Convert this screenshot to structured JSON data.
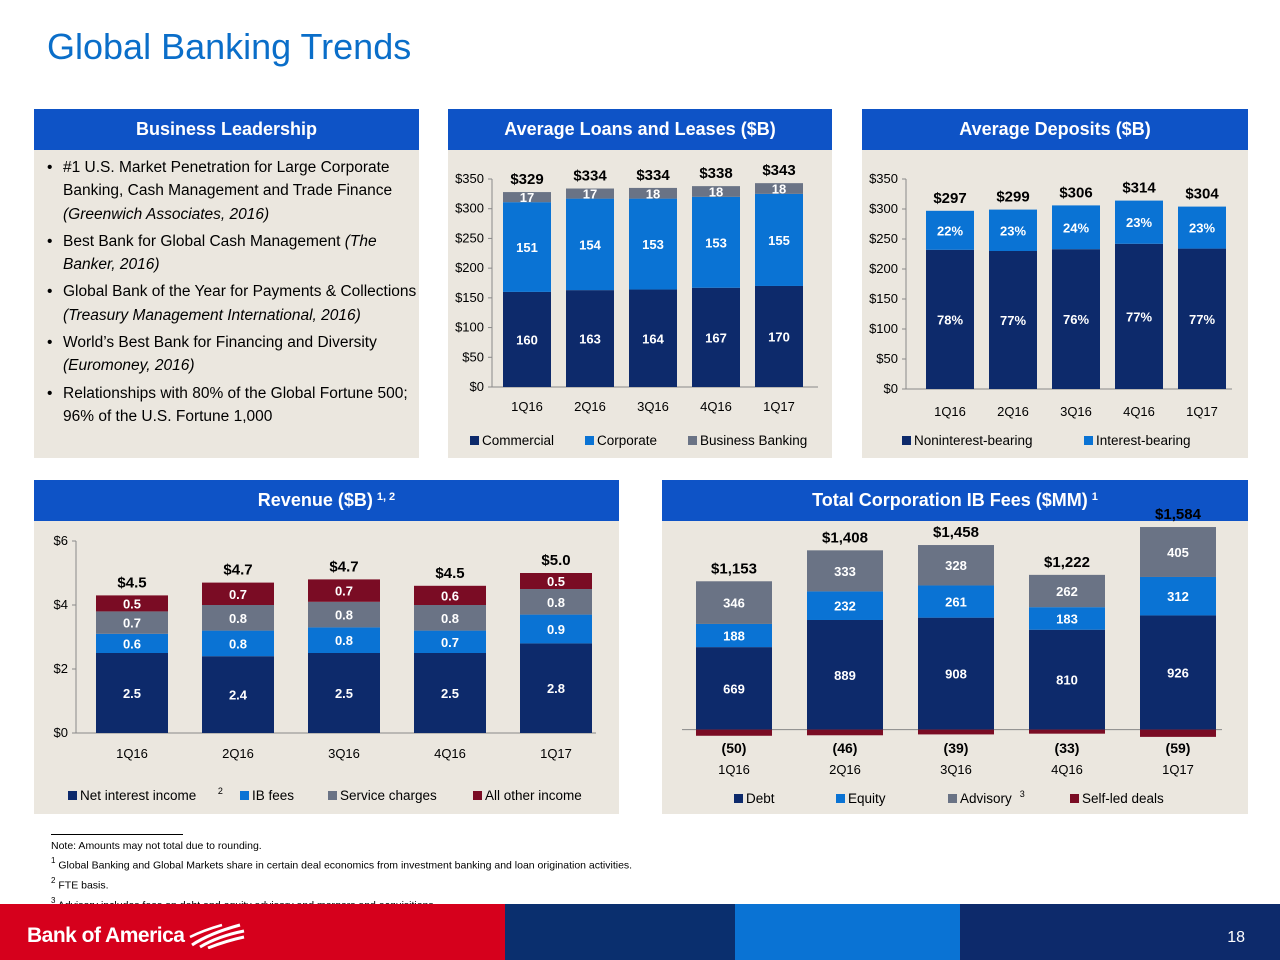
{
  "title": "Global Banking Trends",
  "leadership": {
    "header": "Business Leadership",
    "bullets": [
      {
        "text": "#1 U.S. Market Penetration for Large Corporate Banking, Cash Management and Trade Finance ",
        "italic": "(Greenwich Associates, 2016)"
      },
      {
        "text": "Best Bank for Global Cash Management ",
        "italic": "(The Banker, 2016)"
      },
      {
        "text": "Global Bank of the Year for Payments & Collections ",
        "italic": "(Treasury Management International, 2016)"
      },
      {
        "text": "World’s Best Bank for Financing and Diversity ",
        "italic": "(Euromoney, 2016)"
      },
      {
        "text": "Relationships with 80% of the Global Fortune 500; 96% of the U.S. Fortune 1,000",
        "italic": ""
      }
    ]
  },
  "chart_data": [
    {
      "id": "loans",
      "type": "bar",
      "title": "Average Loans and Leases ($B)",
      "categories": [
        "1Q16",
        "2Q16",
        "3Q16",
        "4Q16",
        "1Q17"
      ],
      "yticks": [
        "$0",
        "$50",
        "$100",
        "$150",
        "$200",
        "$250",
        "$300",
        "$350"
      ],
      "ylim": [
        0,
        350
      ],
      "totals": [
        "$329",
        "$334",
        "$334",
        "$338",
        "$343"
      ],
      "series": [
        {
          "name": "Commercial",
          "values": [
            160,
            163,
            164,
            167,
            170
          ],
          "labels": [
            "160",
            "163",
            "164",
            "167",
            "170"
          ],
          "color": "#0d2a6b"
        },
        {
          "name": "Corporate",
          "values": [
            151,
            154,
            153,
            153,
            155
          ],
          "labels": [
            "151",
            "154",
            "153",
            "153",
            "155"
          ],
          "color": "#0a73d4"
        },
        {
          "name": "Business Banking",
          "values": [
            17,
            17,
            18,
            18,
            18
          ],
          "labels": [
            "17",
            "17",
            "18",
            "18",
            "18"
          ],
          "color": "#6a7385"
        }
      ]
    },
    {
      "id": "deposits",
      "type": "bar",
      "title": "Average Deposits ($B)",
      "categories": [
        "1Q16",
        "2Q16",
        "3Q16",
        "4Q16",
        "1Q17"
      ],
      "yticks": [
        "$0",
        "$50",
        "$100",
        "$150",
        "$200",
        "$250",
        "$300",
        "$350"
      ],
      "ylim": [
        0,
        350
      ],
      "totals": [
        "$297",
        "$299",
        "$306",
        "$314",
        "$304"
      ],
      "series": [
        {
          "name": "Noninterest-bearing",
          "values": [
            232,
            230,
            233,
            242,
            234
          ],
          "labels": [
            "78%",
            "77%",
            "76%",
            "77%",
            "77%"
          ],
          "color": "#0d2a6b"
        },
        {
          "name": "Interest-bearing",
          "values": [
            65,
            69,
            73,
            72,
            70
          ],
          "labels": [
            "22%",
            "23%",
            "24%",
            "23%",
            "23%"
          ],
          "color": "#0a73d4"
        }
      ]
    },
    {
      "id": "revenue",
      "type": "bar",
      "title": "Revenue ($B)",
      "title_sup": "1, 2",
      "categories": [
        "1Q16",
        "2Q16",
        "3Q16",
        "4Q16",
        "1Q17"
      ],
      "yticks": [
        "$0",
        "$2",
        "$4",
        "$6"
      ],
      "ylim": [
        0,
        6
      ],
      "totals": [
        "$4.5",
        "$4.7",
        "$4.7",
        "$4.5",
        "$5.0"
      ],
      "series": [
        {
          "name": "Net interest income",
          "name_sup": "2",
          "values": [
            2.5,
            2.4,
            2.5,
            2.5,
            2.8
          ],
          "labels": [
            "2.5",
            "2.4",
            "2.5",
            "2.5",
            "2.8"
          ],
          "color": "#0d2a6b"
        },
        {
          "name": "IB fees",
          "values": [
            0.6,
            0.8,
            0.8,
            0.7,
            0.9
          ],
          "labels": [
            "0.6",
            "0.8",
            "0.8",
            "0.7",
            "0.9"
          ],
          "color": "#0a73d4"
        },
        {
          "name": "Service charges",
          "values": [
            0.7,
            0.8,
            0.8,
            0.8,
            0.8
          ],
          "labels": [
            "0.7",
            "0.8",
            "0.8",
            "0.8",
            "0.8"
          ],
          "color": "#6a7385"
        },
        {
          "name": "All other income",
          "values": [
            0.5,
            0.7,
            0.7,
            0.6,
            0.5
          ],
          "labels": [
            "0.5",
            "0.7",
            "0.7",
            "0.6",
            "0.5"
          ],
          "color": "#7a0c24"
        }
      ]
    },
    {
      "id": "ibfees",
      "type": "bar",
      "title": "Total Corporation IB Fees ($MM)",
      "title_sup": "1",
      "categories": [
        "1Q16",
        "2Q16",
        "3Q16",
        "4Q16",
        "1Q17"
      ],
      "totals": [
        "$1,153",
        "$1,408",
        "$1,458",
        "$1,222",
        "$1,584"
      ],
      "negatives": [
        "(50)",
        "(46)",
        "(39)",
        "(33)",
        "(59)"
      ],
      "series": [
        {
          "name": "Debt",
          "values": [
            669,
            889,
            908,
            810,
            926
          ],
          "labels": [
            "669",
            "889",
            "908",
            "810",
            "926"
          ],
          "color": "#0d2a6b"
        },
        {
          "name": "Equity",
          "values": [
            188,
            232,
            261,
            183,
            312
          ],
          "labels": [
            "188",
            "232",
            "261",
            "183",
            "312"
          ],
          "color": "#0a73d4"
        },
        {
          "name": "Advisory",
          "name_sup": "3",
          "values": [
            346,
            333,
            328,
            262,
            405
          ],
          "labels": [
            "346",
            "333",
            "328",
            "262",
            "405"
          ],
          "color": "#6a7385"
        },
        {
          "name": "Self-led deals",
          "values": [
            -50,
            -46,
            -39,
            -33,
            -59
          ],
          "labels": [
            "",
            "",
            "",
            "",
            ""
          ],
          "color": "#7a0c24"
        }
      ]
    }
  ],
  "footnotes": {
    "note": "Note: Amounts may not total due to rounding.",
    "items": [
      {
        "sup": "1",
        "text": "Global Banking and Global Markets share in certain deal economics from investment banking and loan origination activities."
      },
      {
        "sup": "2",
        "text": "FTE basis."
      },
      {
        "sup": "3",
        "text": "Advisory includes fees on debt and equity advisory and mergers and acquisitions."
      }
    ]
  },
  "footer": {
    "logo_text": "Bank of America",
    "page_number": "18",
    "colors": [
      "#d6001c",
      "#0a2f6e",
      "#0a73d4",
      "#0d2a6b"
    ]
  }
}
